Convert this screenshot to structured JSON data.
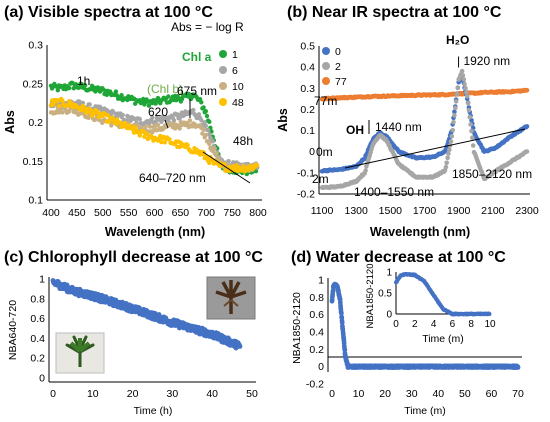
{
  "colors": {
    "green": "#1fa637",
    "gray": "#a6a6a6",
    "olive": "#c9b083",
    "gold": "#ffc000",
    "blue": "#4472c4",
    "orange": "#ed7d31",
    "chlb": "#70ad47"
  },
  "chart_data": [
    {
      "id": "a",
      "type": "line",
      "title": "(a) Visible spectra at 100 °C",
      "xlabel": "Wavelength (nm)",
      "ylabel": "Abs",
      "xlim": [
        400,
        800
      ],
      "ylim": [
        0.1,
        0.3
      ],
      "xticks": [
        400,
        450,
        500,
        550,
        600,
        650,
        700,
        750,
        800
      ],
      "yticks": [
        0.1,
        0.15,
        0.2,
        0.25,
        0.3
      ],
      "ytick_labels": [
        "0.1",
        "0.15",
        "0.2",
        "0.25",
        "0.3"
      ],
      "x": [
        400,
        420,
        440,
        460,
        480,
        500,
        520,
        540,
        560,
        580,
        600,
        620,
        640,
        660,
        675,
        690,
        700,
        710,
        720,
        730,
        740,
        760,
        780,
        800
      ],
      "series": [
        {
          "name": "1",
          "color_key": "green",
          "values": [
            0.246,
            0.244,
            0.248,
            0.246,
            0.243,
            0.241,
            0.237,
            0.233,
            0.229,
            0.226,
            0.226,
            0.229,
            0.231,
            0.232,
            0.236,
            0.225,
            0.212,
            0.19,
            0.165,
            0.143,
            0.141,
            0.138,
            0.137,
            0.14
          ]
        },
        {
          "name": "6",
          "color_key": "gray",
          "values": [
            0.223,
            0.224,
            0.226,
            0.222,
            0.218,
            0.215,
            0.211,
            0.206,
            0.203,
            0.201,
            0.203,
            0.205,
            0.207,
            0.21,
            0.214,
            0.205,
            0.192,
            0.175,
            0.16,
            0.148,
            0.146,
            0.144,
            0.143,
            0.146
          ]
        },
        {
          "name": "10",
          "color_key": "olive",
          "values": [
            0.215,
            0.217,
            0.217,
            0.213,
            0.208,
            0.203,
            0.2,
            0.196,
            0.193,
            0.191,
            0.192,
            0.194,
            0.196,
            0.197,
            0.2,
            0.193,
            0.182,
            0.168,
            0.155,
            0.145,
            0.143,
            0.142,
            0.141,
            0.144
          ]
        },
        {
          "name": "48",
          "color_key": "gold",
          "values": [
            0.225,
            0.226,
            0.223,
            0.218,
            0.213,
            0.208,
            0.202,
            0.196,
            0.19,
            0.184,
            0.18,
            0.178,
            0.173,
            0.168,
            0.165,
            0.16,
            0.155,
            0.15,
            0.145,
            0.143,
            0.142,
            0.141,
            0.141,
            0.145
          ]
        }
      ],
      "legend": {
        "position": "top-right"
      },
      "annotations": {
        "abs_def": "Abs = − log R",
        "chl_b": "(Chl b)",
        "chl_a": "Chl a",
        "l620": "620",
        "l675": "675 nm",
        "l1h": "1h",
        "l48h": "48h",
        "band": "640–720 nm"
      }
    },
    {
      "id": "b",
      "type": "line",
      "title": "(b) Near IR spectra at 100 °C",
      "xlabel": "Wavelength (nm)",
      "ylabel": "Abs",
      "xlim": [
        1100,
        2300
      ],
      "ylim": [
        -0.2,
        0.5
      ],
      "xticks": [
        1100,
        1300,
        1500,
        1700,
        1900,
        2100,
        2300
      ],
      "yticks": [
        -0.2,
        -0.1,
        0,
        0.1,
        0.2,
        0.3,
        0.4,
        0.5
      ],
      "ytick_labels": [
        "-0.2",
        "-0.1",
        "0",
        "0.1",
        "0.2",
        "0.3",
        "0.4",
        "0.5"
      ],
      "x": [
        1100,
        1200,
        1300,
        1350,
        1400,
        1440,
        1480,
        1550,
        1650,
        1750,
        1820,
        1860,
        1900,
        1920,
        1950,
        1990,
        2050,
        2120,
        2200,
        2300
      ],
      "series": [
        {
          "name": "0",
          "color_key": "blue",
          "values": [
            -0.09,
            -0.085,
            -0.07,
            -0.03,
            0.06,
            0.09,
            0.07,
            0.0,
            -0.03,
            -0.025,
            0.0,
            0.1,
            0.33,
            0.36,
            0.25,
            0.09,
            0.0,
            0.02,
            0.07,
            0.12
          ]
        },
        {
          "name": "2",
          "color_key": "gray",
          "values": [
            -0.17,
            -0.165,
            -0.14,
            -0.1,
            0.04,
            0.08,
            0.05,
            -0.06,
            -0.12,
            -0.12,
            -0.09,
            0.07,
            0.34,
            0.38,
            0.26,
            0.0,
            -0.13,
            -0.09,
            -0.05,
            0.0
          ]
        },
        {
          "name": "77",
          "color_key": "orange",
          "values": [
            0.25,
            0.255,
            0.258,
            0.26,
            0.262,
            0.262,
            0.263,
            0.265,
            0.267,
            0.269,
            0.27,
            0.272,
            0.274,
            0.275,
            0.276,
            0.277,
            0.28,
            0.282,
            0.284,
            0.29
          ]
        }
      ],
      "legend": {
        "position": "top-left"
      },
      "annotations": {
        "h2o": "H₂O",
        "l1920": "| 1920 nm",
        "oh": "OH",
        "l1440": "1440 nm",
        "l77m": "77m",
        "l0m": "0m",
        "l2m": "2m",
        "band1": "1400–1550 nm",
        "band2": "1850–2120 nm"
      }
    },
    {
      "id": "c",
      "type": "scatter",
      "title": "(c) Chlorophyll decrease at 100 °C",
      "xlabel": "Time (h)",
      "ylabel": "NBA640-720",
      "xlim": [
        0,
        50
      ],
      "ylim": [
        0,
        1
      ],
      "xticks": [
        0,
        10,
        20,
        30,
        40,
        50
      ],
      "yticks": [
        0,
        0.2,
        0.4,
        0.6,
        0.8,
        1
      ],
      "ytick_labels": [
        "0",
        "0.2",
        "0.4",
        "0.6",
        "0.8",
        "1"
      ],
      "trend": {
        "x": [
          0,
          5,
          10,
          20,
          30,
          40,
          47
        ],
        "y": [
          0.97,
          0.88,
          0.83,
          0.7,
          0.56,
          0.44,
          0.32
        ]
      },
      "spread": 0.035
    },
    {
      "id": "d",
      "type": "scatter",
      "title": "(d) Water decrease at 100 °C",
      "xlabel": "Time (m)",
      "ylabel": "NBA1850-2120",
      "xlim": [
        0,
        70
      ],
      "ylim": [
        -0.2,
        1
      ],
      "xticks": [
        0,
        10,
        20,
        30,
        40,
        50,
        60,
        70
      ],
      "yticks": [
        -0.2,
        0,
        0.2,
        0.4,
        0.6,
        0.8,
        1
      ],
      "ytick_labels": [
        "-0.2",
        "0",
        "0.2",
        "0.4",
        "0.6",
        "0.8",
        "1"
      ],
      "trend": {
        "x": [
          0,
          0.5,
          1,
          2,
          3,
          4,
          5,
          6,
          8,
          70
        ],
        "y": [
          0.75,
          0.92,
          0.95,
          0.93,
          0.78,
          0.45,
          0.12,
          0.0,
          0.0,
          0.0
        ]
      },
      "inset": {
        "xlabel": "Time (m)",
        "ylabel": "NBA1850-2120",
        "xlim": [
          0,
          10
        ],
        "ylim": [
          0,
          1
        ],
        "xticks": [
          0,
          2,
          4,
          6,
          8,
          10
        ],
        "yticks": [
          0,
          0.5,
          1
        ],
        "ytick_labels": [
          "0",
          "0.5",
          "1"
        ]
      }
    }
  ]
}
